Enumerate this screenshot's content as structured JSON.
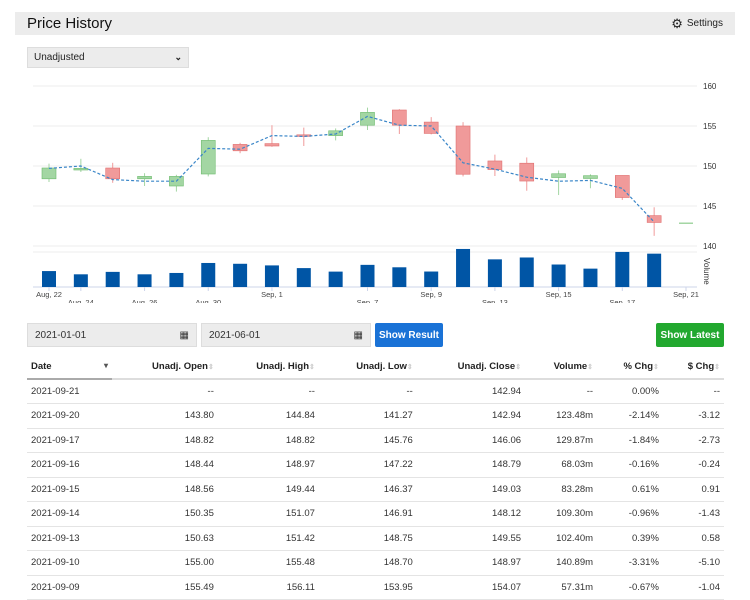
{
  "header": {
    "title": "Price History",
    "settings_label": "Settings"
  },
  "adjustment_select": {
    "value": "Unadjusted"
  },
  "chart_data": {
    "type": "candlestick",
    "y_ticks": [
      140,
      145,
      150,
      155,
      160
    ],
    "ylim": [
      140,
      160
    ],
    "volume_label": "Volume",
    "x_labels": [
      {
        "i": 0,
        "t": "Aug, 22"
      },
      {
        "i": 1,
        "t": "Aug, 24"
      },
      {
        "i": 3,
        "t": "Aug, 26"
      },
      {
        "i": 5,
        "t": "Aug, 30"
      },
      {
        "i": 7,
        "t": "Sep, 1"
      },
      {
        "i": 10,
        "t": "Sep, 7"
      },
      {
        "i": 12,
        "t": "Sep, 9"
      },
      {
        "i": 14,
        "t": "Sep, 13"
      },
      {
        "i": 16,
        "t": "Sep, 15"
      },
      {
        "i": 18,
        "t": "Sep, 17"
      },
      {
        "i": 20,
        "t": "Sep, 21"
      }
    ],
    "ohlc": [
      [
        148.4,
        150.3,
        148.0,
        149.75
      ],
      [
        149.5,
        150.9,
        149.25,
        149.7
      ],
      [
        149.75,
        150.4,
        147.9,
        148.4
      ],
      [
        148.4,
        149.1,
        147.5,
        148.7
      ],
      [
        147.5,
        148.9,
        146.8,
        148.7
      ],
      [
        149.0,
        153.6,
        148.7,
        153.2
      ],
      [
        152.7,
        152.9,
        151.6,
        151.9
      ],
      [
        152.8,
        155.1,
        152.4,
        152.5
      ],
      [
        153.9,
        154.8,
        152.5,
        153.7
      ],
      [
        153.8,
        154.7,
        153.2,
        154.4
      ],
      [
        155.1,
        157.3,
        154.5,
        156.7
      ],
      [
        157.0,
        157.1,
        154.0,
        155.1
      ],
      [
        155.49,
        156.11,
        153.95,
        154.07
      ],
      [
        155.0,
        155.48,
        148.7,
        148.97
      ],
      [
        150.63,
        151.42,
        148.75,
        149.55
      ],
      [
        150.35,
        151.07,
        146.91,
        148.12
      ],
      [
        148.56,
        149.44,
        146.37,
        149.03
      ],
      [
        148.44,
        148.97,
        147.22,
        148.79
      ],
      [
        148.82,
        148.82,
        145.76,
        146.06
      ],
      [
        143.8,
        144.84,
        141.27,
        142.94
      ],
      [
        142.94,
        142.94,
        142.94,
        142.94
      ]
    ],
    "volume_m": [
      59,
      47,
      56,
      47,
      52,
      89,
      86,
      80,
      70,
      57,
      82,
      73,
      57.31,
      140.89,
      102.4,
      109.3,
      83.28,
      68.03,
      129.87,
      123.48,
      0
    ],
    "trend": [
      149.7,
      150.0,
      148.3,
      148.1,
      148.1,
      152.2,
      152.1,
      153.8,
      153.7,
      154.0,
      156.2,
      155.1,
      155.0,
      150.4,
      149.6,
      148.6,
      148.1,
      148.2,
      147.2,
      143.0
    ],
    "colors": {
      "up": "#a3d6a3",
      "down": "#f09a9a",
      "volume": "#0055a5",
      "trend": "#3a86c8"
    }
  },
  "filters": {
    "start_date": "2021-01-01",
    "end_date": "2021-06-01",
    "show_result": "Show Result",
    "show_latest": "Show Latest"
  },
  "table": {
    "columns": [
      "Date",
      "Unadj. Open",
      "Unadj. High",
      "Unadj. Low",
      "Unadj. Close",
      "Volume",
      "% Chg",
      "$ Chg"
    ],
    "rows": [
      [
        "2021-09-21",
        "--",
        "--",
        "--",
        "142.94",
        "--",
        "0.00%",
        "--"
      ],
      [
        "2021-09-20",
        "143.80",
        "144.84",
        "141.27",
        "142.94",
        "123.48m",
        "-2.14%",
        "-3.12"
      ],
      [
        "2021-09-17",
        "148.82",
        "148.82",
        "145.76",
        "146.06",
        "129.87m",
        "-1.84%",
        "-2.73"
      ],
      [
        "2021-09-16",
        "148.44",
        "148.97",
        "147.22",
        "148.79",
        "68.03m",
        "-0.16%",
        "-0.24"
      ],
      [
        "2021-09-15",
        "148.56",
        "149.44",
        "146.37",
        "149.03",
        "83.28m",
        "0.61%",
        "0.91"
      ],
      [
        "2021-09-14",
        "150.35",
        "151.07",
        "146.91",
        "148.12",
        "109.30m",
        "-0.96%",
        "-1.43"
      ],
      [
        "2021-09-13",
        "150.63",
        "151.42",
        "148.75",
        "149.55",
        "102.40m",
        "0.39%",
        "0.58"
      ],
      [
        "2021-09-10",
        "155.00",
        "155.48",
        "148.70",
        "148.97",
        "140.89m",
        "-3.31%",
        "-5.10"
      ],
      [
        "2021-09-09",
        "155.49",
        "156.11",
        "153.95",
        "154.07",
        "57.31m",
        "-0.67%",
        "-1.04"
      ]
    ]
  }
}
